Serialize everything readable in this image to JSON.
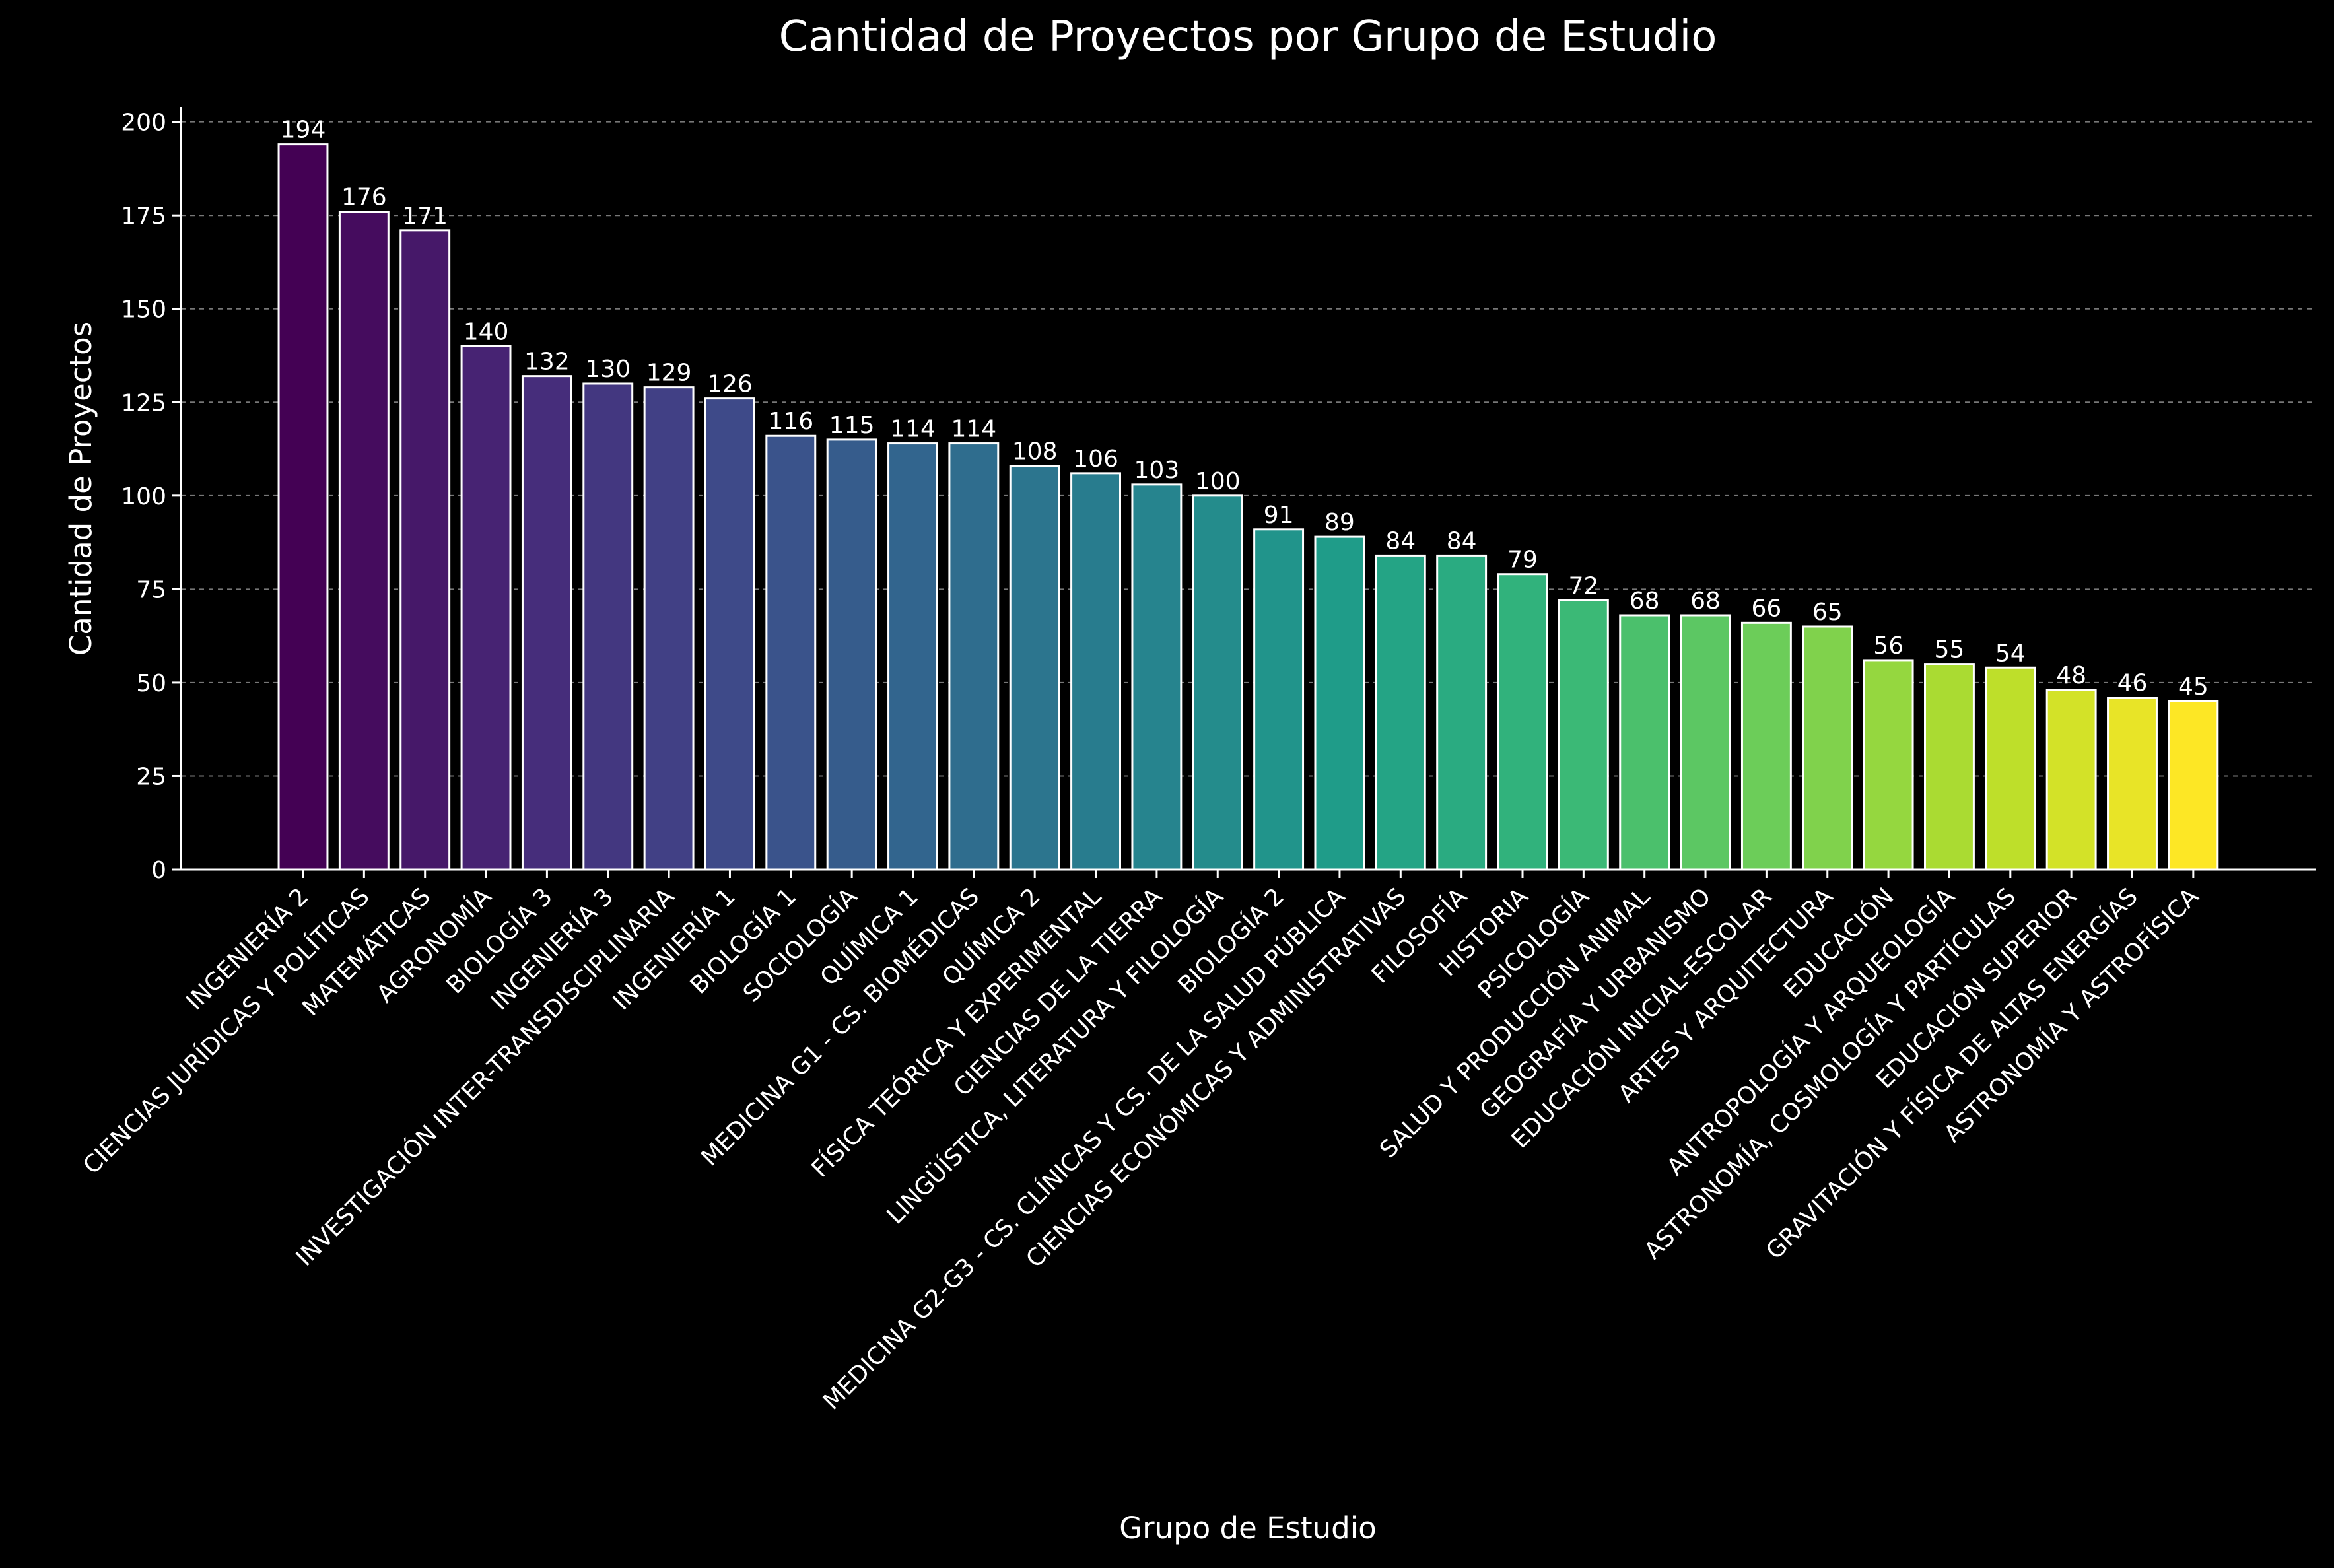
{
  "chart_data": {
    "type": "bar",
    "title": "Cantidad de Proyectos por Grupo de Estudio",
    "xlabel": "Grupo de Estudio",
    "ylabel": "Cantidad de Proyectos",
    "ylim": [
      0,
      204
    ],
    "yticks": [
      0,
      25,
      50,
      75,
      100,
      125,
      150,
      175,
      200
    ],
    "grid": "horizontal-dashed",
    "colormap": "viridis",
    "bar_edge_color": "#ffffff",
    "categories": [
      "INGENIERÍA 2",
      "CIENCIAS JURÍDICAS Y POLÍTICAS",
      "MATEMÁTICAS",
      "AGRONOMÍA",
      "BIOLOGÍA 3",
      "INGENIERÍA 3",
      "INVESTIGACIÓN INTER-TRANSDISCIPLINARIA",
      "INGENIERÍA 1",
      "BIOLOGÍA 1",
      "SOCIOLOGÍA",
      "QUÍMICA 1",
      "MEDICINA G1 - CS. BIOMÉDICAS",
      "QUÍMICA 2",
      "FÍSICA TEÓRICA Y EXPERIMENTAL",
      "CIENCIAS DE LA TIERRA",
      "LINGÜÍSTICA, LITERATURA Y FILOLOGÍA",
      "BIOLOGÍA 2",
      "MEDICINA G2-G3 - CS. CLÍNICAS Y CS. DE LA SALUD PÚBLICA",
      "CIENCIAS ECONÓMICAS Y ADMINISTRATIVAS",
      "FILOSOFÍA",
      "HISTORIA",
      "PSICOLOGÍA",
      "SALUD Y PRODUCCIÓN ANIMAL",
      "GEOGRAFÍA Y URBANISMO",
      "EDUCACIÓN INICIAL-ESCOLAR",
      "ARTES Y ARQUITECTURA",
      "EDUCACIÓN",
      "ANTROPOLOGÍA Y ARQUEOLOGÍA",
      "ASTRONOMÍA, COSMOLOGÍA Y PARTÍCULAS",
      "EDUCACIÓN SUPERIOR",
      "GRAVITACIÓN Y FÍSICA DE ALTAS ENERGÍAS",
      "ASTRONOMÍA Y ASTROFÍSICA"
    ],
    "values": [
      194,
      176,
      171,
      140,
      132,
      130,
      129,
      126,
      116,
      115,
      114,
      114,
      108,
      106,
      103,
      100,
      91,
      89,
      84,
      84,
      79,
      72,
      68,
      68,
      66,
      65,
      56,
      55,
      54,
      48,
      46,
      45
    ]
  }
}
